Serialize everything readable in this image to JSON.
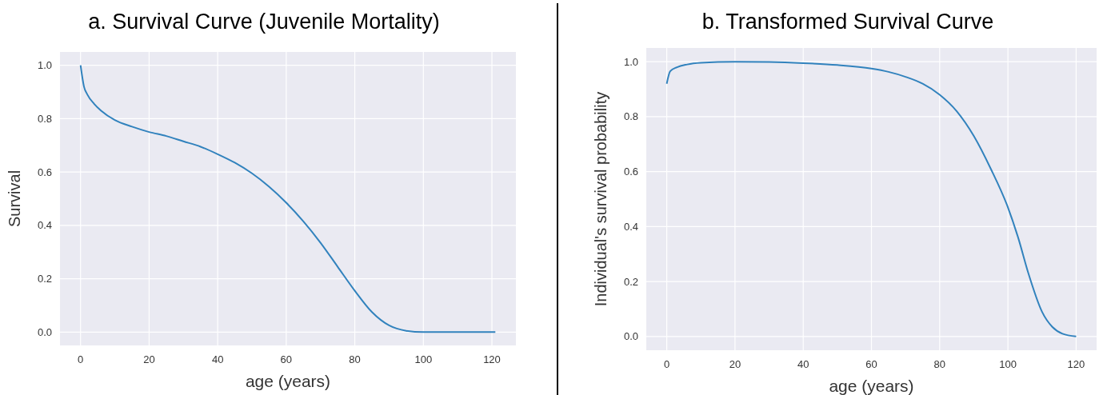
{
  "chart_data": [
    {
      "type": "line",
      "title": "a. Survival Curve (Juvenile Mortality)",
      "xlabel": "age (years)",
      "ylabel": "Survival",
      "xlim": [
        -6,
        127
      ],
      "ylim": [
        -0.05,
        1.05
      ],
      "xticks": [
        0,
        20,
        40,
        60,
        80,
        100,
        120
      ],
      "yticks": [
        {
          "value": 0,
          "label": "0.0"
        },
        {
          "value": 0.2,
          "label": "0.2"
        },
        {
          "value": 0.4,
          "label": "0.4"
        },
        {
          "value": 0.6,
          "label": "0.6"
        },
        {
          "value": 0.8,
          "label": "0.8"
        },
        {
          "value": 1,
          "label": "1.0"
        }
      ],
      "grid": true,
      "x": [
        0,
        1,
        2,
        4,
        6,
        10,
        15,
        20,
        25,
        30,
        35,
        40,
        45,
        50,
        55,
        60,
        65,
        70,
        75,
        80,
        85,
        90,
        95,
        100,
        110,
        121
      ],
      "series": [
        {
          "color": "#3182bd",
          "values": [
            1.0,
            0.92,
            0.89,
            0.855,
            0.83,
            0.795,
            0.77,
            0.75,
            0.735,
            0.715,
            0.695,
            0.667,
            0.635,
            0.595,
            0.545,
            0.485,
            0.415,
            0.335,
            0.245,
            0.155,
            0.075,
            0.025,
            0.005,
            0.0,
            0.0,
            0.0
          ]
        }
      ]
    },
    {
      "type": "line",
      "title": "b. Transformed Survival Curve",
      "xlabel": "age (years)",
      "ylabel": "Individual's survival probability",
      "xlim": [
        -6,
        126
      ],
      "ylim": [
        -0.05,
        1.05
      ],
      "xticks": [
        0,
        20,
        40,
        60,
        80,
        100,
        120
      ],
      "yticks": [
        {
          "value": 0,
          "label": "0.0"
        },
        {
          "value": 0.2,
          "label": "0.2"
        },
        {
          "value": 0.4,
          "label": "0.4"
        },
        {
          "value": 0.6,
          "label": "0.6"
        },
        {
          "value": 0.8,
          "label": "0.8"
        },
        {
          "value": 1,
          "label": "1.0"
        }
      ],
      "grid": true,
      "x": [
        0,
        1,
        3,
        6,
        10,
        20,
        30,
        40,
        50,
        60,
        65,
        70,
        75,
        80,
        85,
        90,
        95,
        100,
        103,
        106,
        110,
        113,
        116,
        120
      ],
      "series": [
        {
          "color": "#3182bd",
          "values": [
            0.92,
            0.965,
            0.98,
            0.99,
            0.996,
            1.0,
            0.999,
            0.995,
            0.988,
            0.975,
            0.963,
            0.945,
            0.92,
            0.88,
            0.82,
            0.73,
            0.61,
            0.47,
            0.36,
            0.23,
            0.09,
            0.035,
            0.01,
            0.0
          ]
        }
      ]
    }
  ]
}
